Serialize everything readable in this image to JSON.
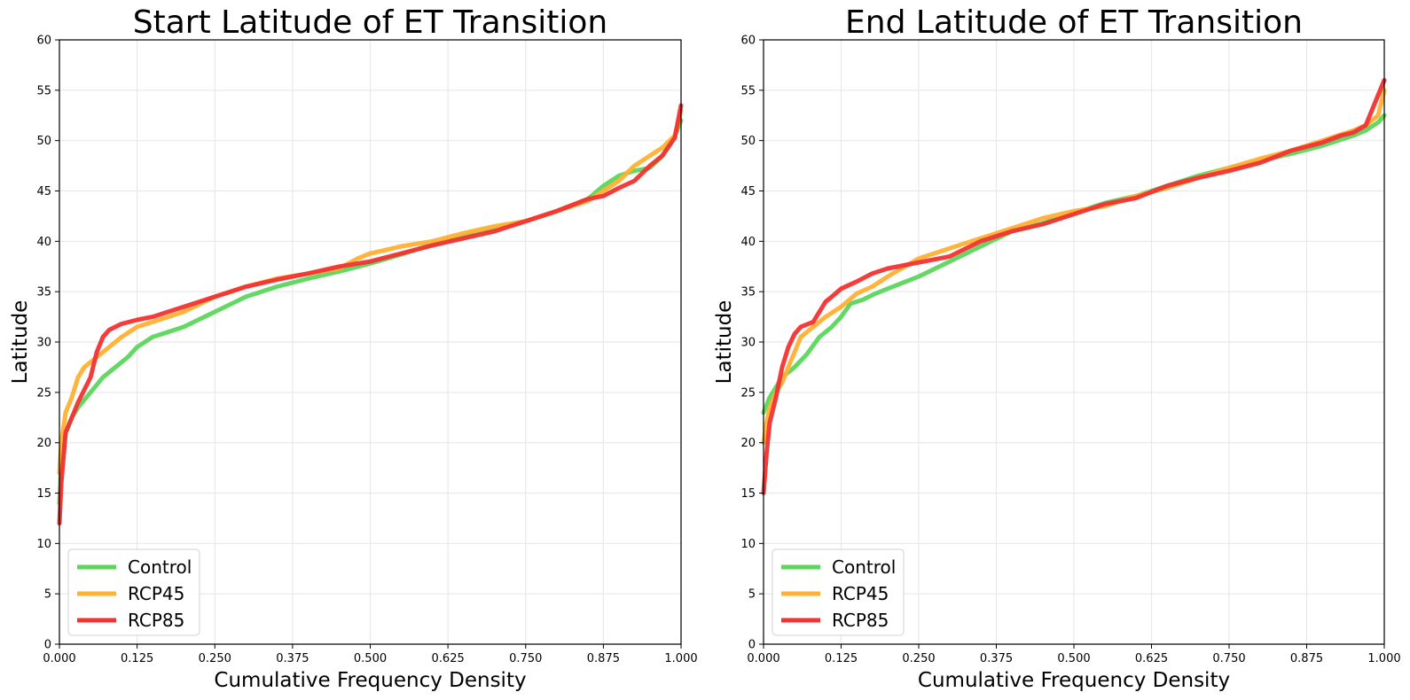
{
  "chart_data": [
    {
      "type": "line",
      "title": "Start Latitude of ET Transition",
      "xlabel": "Cumulative Frequency Density",
      "ylabel": "Latitude",
      "xlim": [
        0,
        1
      ],
      "ylim": [
        0,
        60
      ],
      "xticks": [
        "0.000",
        "0.125",
        "0.250",
        "0.375",
        "0.500",
        "0.625",
        "0.750",
        "0.875",
        "1.000"
      ],
      "yticks": [
        "0",
        "5",
        "10",
        "15",
        "20",
        "25",
        "30",
        "35",
        "40",
        "45",
        "50",
        "55",
        "60"
      ],
      "grid": true,
      "legend_position": "lower-left",
      "series": [
        {
          "name": "Control",
          "color": "#5cd65c",
          "x": [
            0.0,
            0.003,
            0.01,
            0.02,
            0.03,
            0.05,
            0.07,
            0.09,
            0.11,
            0.125,
            0.15,
            0.175,
            0.2,
            0.25,
            0.3,
            0.35,
            0.4,
            0.45,
            0.5,
            0.55,
            0.6,
            0.65,
            0.7,
            0.75,
            0.8,
            0.85,
            0.875,
            0.9,
            0.925,
            0.95,
            0.97,
            0.99,
            1.0
          ],
          "y": [
            14,
            18,
            21,
            22.5,
            23.5,
            25,
            26.5,
            27.5,
            28.5,
            29.5,
            30.5,
            31,
            31.5,
            33,
            34.5,
            35.5,
            36.3,
            37,
            37.8,
            38.7,
            39.7,
            40.5,
            41.3,
            42,
            43,
            44.2,
            45.5,
            46.5,
            47,
            47.3,
            48.5,
            50.5,
            52
          ]
        },
        {
          "name": "RCP45",
          "color": "#ffb133",
          "x": [
            0.0,
            0.003,
            0.01,
            0.02,
            0.03,
            0.04,
            0.06,
            0.08,
            0.1,
            0.125,
            0.15,
            0.175,
            0.2,
            0.25,
            0.3,
            0.35,
            0.4,
            0.45,
            0.48,
            0.5,
            0.55,
            0.6,
            0.65,
            0.7,
            0.75,
            0.8,
            0.85,
            0.875,
            0.9,
            0.925,
            0.95,
            0.97,
            0.99,
            1.0
          ],
          "y": [
            17,
            20,
            23,
            24.5,
            26.5,
            27.5,
            28.5,
            29.5,
            30.5,
            31.5,
            32,
            32.5,
            33,
            34.5,
            35.5,
            36.3,
            36.8,
            37.3,
            38.3,
            38.8,
            39.5,
            40,
            40.8,
            41.5,
            42,
            43,
            44,
            45,
            46,
            47.5,
            48.5,
            49.3,
            50.5,
            53
          ]
        },
        {
          "name": "RCP85",
          "color": "#f23333",
          "x": [
            0.0,
            0.003,
            0.01,
            0.02,
            0.03,
            0.05,
            0.06,
            0.07,
            0.08,
            0.09,
            0.1,
            0.125,
            0.15,
            0.175,
            0.2,
            0.25,
            0.3,
            0.35,
            0.4,
            0.45,
            0.5,
            0.55,
            0.6,
            0.65,
            0.7,
            0.75,
            0.8,
            0.85,
            0.875,
            0.9,
            0.925,
            0.95,
            0.97,
            0.99,
            1.0
          ],
          "y": [
            12,
            16,
            21,
            22.5,
            24,
            26.5,
            29,
            30.5,
            31.2,
            31.5,
            31.8,
            32.2,
            32.5,
            33,
            33.5,
            34.5,
            35.5,
            36.2,
            36.8,
            37.5,
            38,
            38.8,
            39.6,
            40.3,
            41,
            42,
            43,
            44.2,
            44.5,
            45.3,
            46,
            47.5,
            48.5,
            50.3,
            53.5
          ]
        }
      ]
    },
    {
      "type": "line",
      "title": "End Latitude of ET Transition",
      "xlabel": "Cumulative Frequency Density",
      "ylabel": "Latitude",
      "xlim": [
        0,
        1
      ],
      "ylim": [
        0,
        60
      ],
      "xticks": [
        "0.000",
        "0.125",
        "0.250",
        "0.375",
        "0.500",
        "0.625",
        "0.750",
        "0.875",
        "1.000"
      ],
      "yticks": [
        "0",
        "5",
        "10",
        "15",
        "20",
        "25",
        "30",
        "35",
        "40",
        "45",
        "50",
        "55",
        "60"
      ],
      "grid": true,
      "legend_position": "lower-left",
      "series": [
        {
          "name": "Control",
          "color": "#5cd65c",
          "x": [
            0.0,
            0.01,
            0.02,
            0.03,
            0.05,
            0.07,
            0.09,
            0.11,
            0.125,
            0.14,
            0.16,
            0.18,
            0.2,
            0.25,
            0.3,
            0.35,
            0.4,
            0.45,
            0.5,
            0.55,
            0.6,
            0.65,
            0.7,
            0.75,
            0.8,
            0.85,
            0.9,
            0.925,
            0.95,
            0.97,
            0.99,
            1.0
          ],
          "y": [
            23,
            24.5,
            25.5,
            26.5,
            27.5,
            28.8,
            30.5,
            31.5,
            32.5,
            33.8,
            34.2,
            34.8,
            35.3,
            36.5,
            38,
            39.5,
            41,
            41.8,
            42.8,
            43.8,
            44.5,
            45.5,
            46.5,
            47.3,
            48,
            48.7,
            49.5,
            50,
            50.5,
            51,
            51.8,
            52.5
          ]
        },
        {
          "name": "RCP45",
          "color": "#ffb133",
          "x": [
            0.0,
            0.005,
            0.01,
            0.02,
            0.03,
            0.04,
            0.05,
            0.06,
            0.08,
            0.1,
            0.125,
            0.15,
            0.175,
            0.2,
            0.25,
            0.3,
            0.35,
            0.4,
            0.45,
            0.5,
            0.55,
            0.6,
            0.65,
            0.7,
            0.75,
            0.8,
            0.85,
            0.9,
            0.95,
            0.97,
            0.99,
            1.0
          ],
          "y": [
            20,
            22,
            23.5,
            25,
            26,
            27.5,
            29,
            30.5,
            31.5,
            32.5,
            33.5,
            34.8,
            35.5,
            36.5,
            38.3,
            39.3,
            40.3,
            41.3,
            42.3,
            43,
            43.5,
            44.5,
            45.3,
            46.3,
            47.3,
            48.2,
            49,
            50,
            51,
            51.5,
            52.5,
            55
          ]
        },
        {
          "name": "RCP85",
          "color": "#f23333",
          "x": [
            0.0,
            0.005,
            0.01,
            0.02,
            0.03,
            0.04,
            0.05,
            0.06,
            0.08,
            0.09,
            0.1,
            0.11,
            0.125,
            0.15,
            0.175,
            0.2,
            0.25,
            0.3,
            0.35,
            0.4,
            0.45,
            0.5,
            0.55,
            0.6,
            0.65,
            0.7,
            0.75,
            0.8,
            0.85,
            0.9,
            0.93,
            0.95,
            0.97,
            0.99,
            1.0
          ],
          "y": [
            15,
            19,
            22,
            24.5,
            27.5,
            29.5,
            30.8,
            31.5,
            32,
            33,
            34,
            34.5,
            35.3,
            36,
            36.8,
            37.3,
            37.9,
            38.5,
            40,
            41,
            41.7,
            42.7,
            43.7,
            44.3,
            45.5,
            46.3,
            47,
            47.8,
            49,
            49.8,
            50.5,
            50.8,
            51.5,
            54.5,
            56
          ]
        }
      ]
    }
  ]
}
